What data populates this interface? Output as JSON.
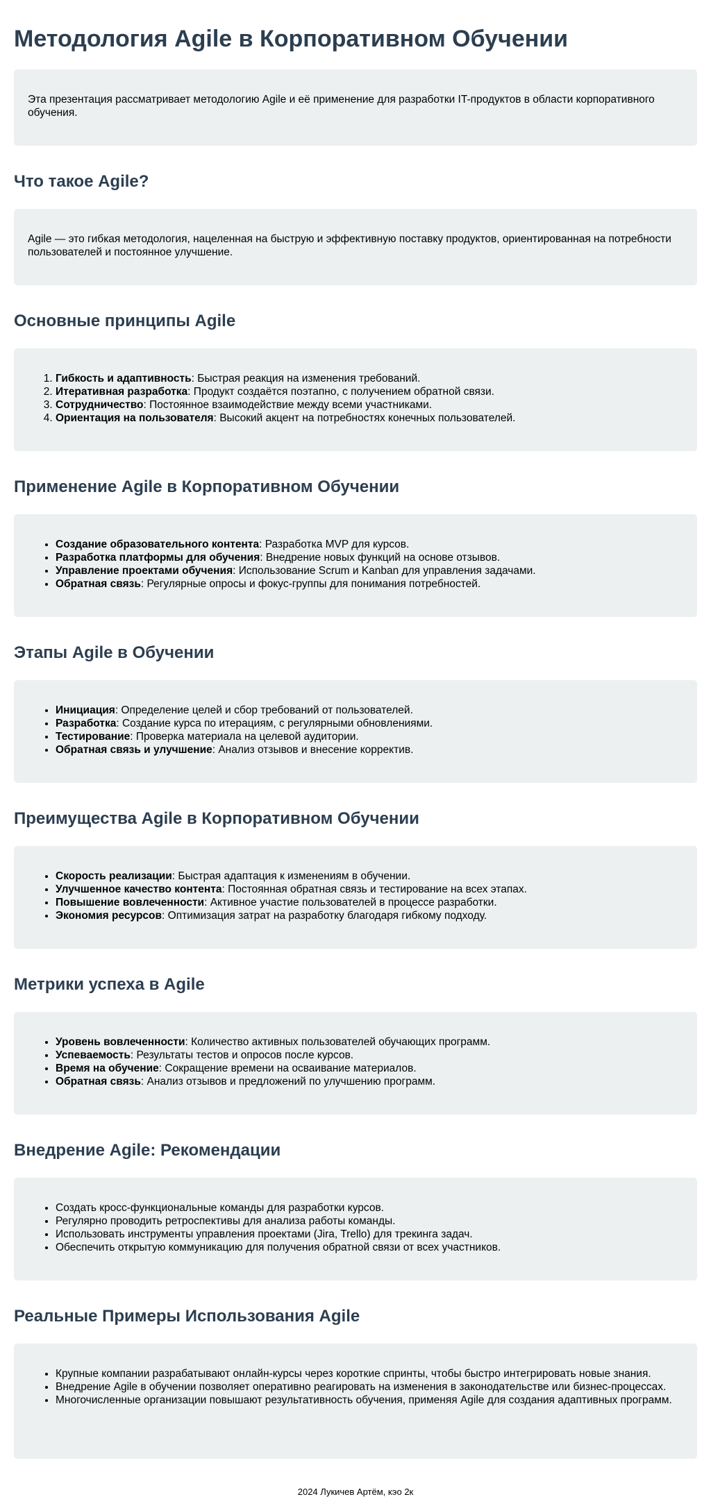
{
  "title": "Методология Agile в Корпоративном Обучении",
  "intro": "Эта презентация рассматривает методологию Agile и её применение для разработки IT-продуктов в области корпоративного обучения.",
  "sections": [
    {
      "heading": "Что такое Agile?",
      "text": "Agile — это гибкая методология, нацеленная на быструю и эффективную поставку продуктов, ориентированная на потребности пользователей и постоянное улучшение."
    },
    {
      "heading": "Основные принципы Agile",
      "list_type": "ordered",
      "items": [
        {
          "bold": "Гибкость и адаптивность",
          "text": ": Быстрая реакция на изменения требований."
        },
        {
          "bold": "Итеративная разработка",
          "text": ": Продукт создаётся поэтапно, с получением обратной связи."
        },
        {
          "bold": "Сотрудничество",
          "text": ": Постоянное взаимодействие между всеми участниками."
        },
        {
          "bold": "Ориентация на пользователя",
          "text": ": Высокий акцент на потребностях конечных пользователей."
        }
      ]
    },
    {
      "heading": "Применение Agile в Корпоративном Обучении",
      "list_type": "unordered",
      "items": [
        {
          "bold": "Создание образовательного контента",
          "text": ": Разработка MVP для курсов."
        },
        {
          "bold": "Разработка платформы для обучения",
          "text": ": Внедрение новых функций на основе отзывов."
        },
        {
          "bold": "Управление проектами обучения",
          "text": ": Использование Scrum и Kanban для управления задачами."
        },
        {
          "bold": "Обратная связь",
          "text": ": Регулярные опросы и фокус-группы для понимания потребностей."
        }
      ]
    },
    {
      "heading": "Этапы Agile в Обучении",
      "list_type": "unordered",
      "items": [
        {
          "bold": "Инициация",
          "text": ": Определение целей и сбор требований от пользователей."
        },
        {
          "bold": "Разработка",
          "text": ": Создание курса по итерациям, с регулярными обновлениями."
        },
        {
          "bold": "Тестирование",
          "text": ": Проверка материала на целевой аудитории."
        },
        {
          "bold": "Обратная связь и улучшение",
          "text": ": Анализ отзывов и внесение корректив."
        }
      ]
    },
    {
      "heading": "Преимущества Agile в Корпоративном Обучении",
      "list_type": "unordered",
      "items": [
        {
          "bold": "Скорость реализации",
          "text": ": Быстрая адаптация к изменениям в обучении."
        },
        {
          "bold": "Улучшенное качество контента",
          "text": ": Постоянная обратная связь и тестирование на всех этапах."
        },
        {
          "bold": "Повышение вовлеченности",
          "text": ": Активное участие пользователей в процессе разработки."
        },
        {
          "bold": "Экономия ресурсов",
          "text": ": Оптимизация затрат на разработку благодаря гибкому подходу."
        }
      ]
    },
    {
      "heading": "Метрики успеха в Agile",
      "list_type": "unordered",
      "items": [
        {
          "bold": "Уровень вовлеченности",
          "text": ": Количество активных пользователей обучающих программ."
        },
        {
          "bold": "Успеваемость",
          "text": ": Результаты тестов и опросов после курсов."
        },
        {
          "bold": "Время на обучение",
          "text": ": Сокращение времени на осваивание материалов."
        },
        {
          "bold": "Обратная связь",
          "text": ": Анализ отзывов и предложений по улучшению программ."
        }
      ]
    },
    {
      "heading": "Внедрение Agile: Рекомендации",
      "list_type": "unordered",
      "items": [
        {
          "bold": "",
          "text": "Создать кросс-функциональные команды для разработки курсов."
        },
        {
          "bold": "",
          "text": "Регулярно проводить ретроспективы для анализа работы команды."
        },
        {
          "bold": "",
          "text": "Использовать инструменты управления проектами (Jira, Trello) для трекинга задач."
        },
        {
          "bold": "",
          "text": "Обеспечить открытую коммуникацию для получения обратной связи от всех участников."
        }
      ]
    },
    {
      "heading": "Реальные Примеры Использования Agile",
      "list_type": "unordered",
      "items": [
        {
          "bold": "",
          "text": "Крупные компании разрабатывают онлайн-курсы через короткие спринты, чтобы быстро интегрировать новые знания."
        },
        {
          "bold": "",
          "text": "Внедрение Agile в обучении позволяет оперативно реагировать на изменения в законодательстве или бизнес-процессах."
        },
        {
          "bold": "",
          "text": "Многочисленные организации повышают результативность обучения, применяя Agile для создания адаптивных программ."
        }
      ]
    }
  ],
  "footer": "2024 Лукичев Артём, кэо 2к",
  "colors": {
    "heading": "#2c3e50",
    "card_background": "#ecf0f1"
  }
}
